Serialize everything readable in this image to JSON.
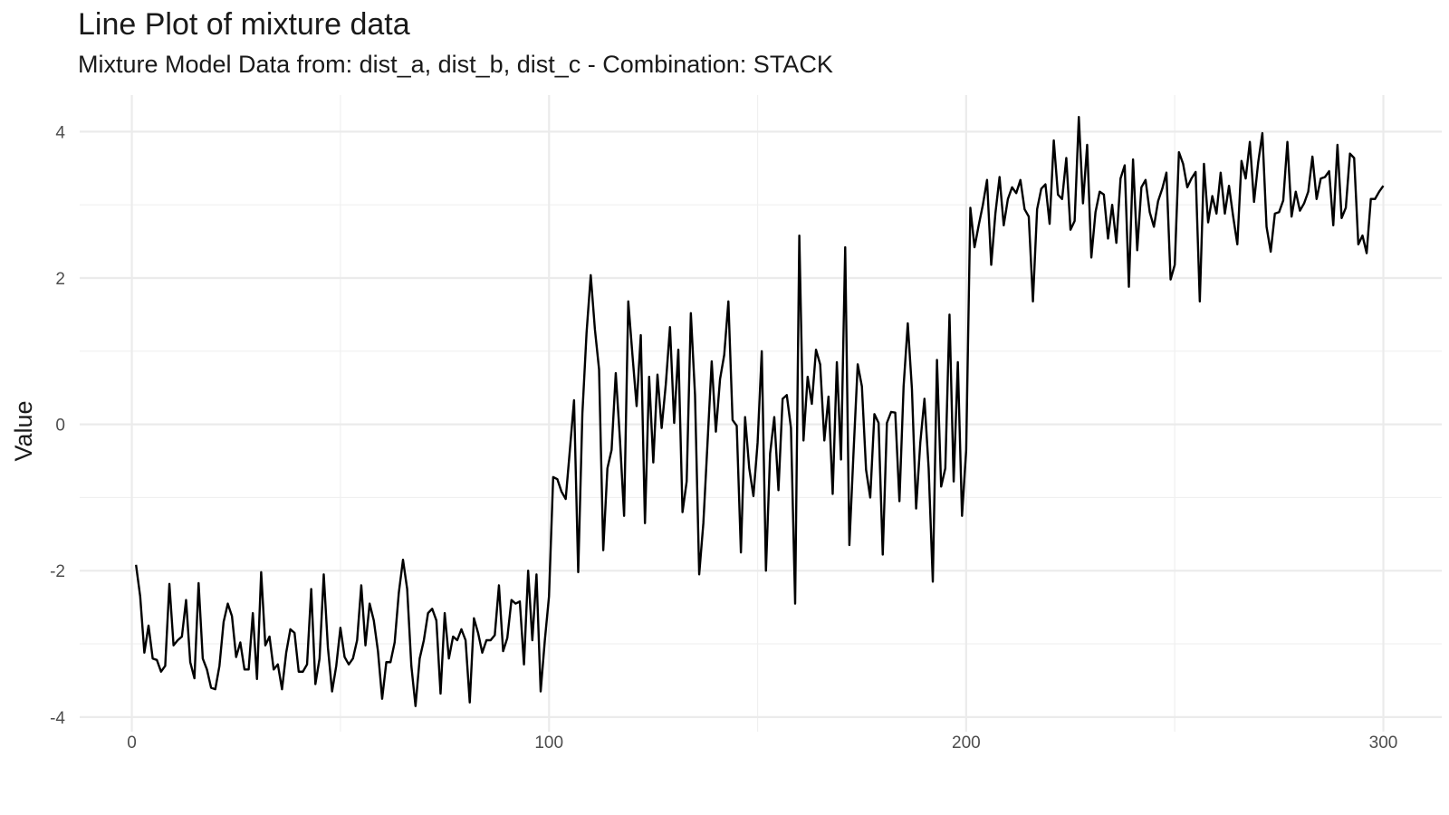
{
  "chart_data": {
    "type": "line",
    "title": "Line Plot of mixture data",
    "subtitle": "Mixture Model Data from: dist_a, dist_b, dist_c - Combination: STACK",
    "xlabel": "",
    "ylabel": "Value",
    "xlim": [
      -12.5,
      314
    ],
    "ylim": [
      -4.2,
      4.5
    ],
    "x_ticks": [
      0,
      100,
      200,
      300
    ],
    "y_ticks": [
      -4,
      -2,
      0,
      2,
      4
    ],
    "grid": true,
    "line_color": "#000000",
    "x_start": 1,
    "y": [
      -1.92,
      -2.35,
      -3.12,
      -2.75,
      -3.2,
      -3.22,
      -3.38,
      -3.3,
      -2.18,
      -3.02,
      -2.95,
      -2.9,
      -2.4,
      -3.25,
      -3.47,
      -2.17,
      -3.2,
      -3.35,
      -3.6,
      -3.62,
      -3.3,
      -2.7,
      -2.45,
      -2.62,
      -3.18,
      -2.98,
      -3.35,
      -3.35,
      -2.58,
      -3.48,
      -2.02,
      -3.02,
      -2.9,
      -3.35,
      -3.28,
      -3.62,
      -3.12,
      -2.8,
      -2.85,
      -3.38,
      -3.38,
      -3.28,
      -2.25,
      -3.55,
      -3.2,
      -2.05,
      -3.05,
      -3.65,
      -3.3,
      -2.78,
      -3.18,
      -3.28,
      -3.2,
      -2.95,
      -2.2,
      -3.02,
      -2.45,
      -2.68,
      -3.1,
      -3.75,
      -3.25,
      -3.25,
      -2.98,
      -2.3,
      -1.85,
      -2.25,
      -3.3,
      -3.85,
      -3.2,
      -2.95,
      -2.58,
      -2.52,
      -2.68,
      -3.68,
      -2.58,
      -3.2,
      -2.9,
      -2.95,
      -2.8,
      -2.95,
      -3.8,
      -2.65,
      -2.85,
      -3.12,
      -2.95,
      -2.95,
      -2.88,
      -2.2,
      -3.1,
      -2.92,
      -2.4,
      -2.45,
      -2.42,
      -3.28,
      -2.0,
      -2.95,
      -2.05,
      -3.65,
      -2.95,
      -2.35,
      -0.72,
      -0.75,
      -0.92,
      -1.02,
      -0.35,
      0.33,
      -2.02,
      0.15,
      1.25,
      2.04,
      1.3,
      0.75,
      -1.72,
      -0.6,
      -0.35,
      0.7,
      -0.2,
      -1.25,
      1.68,
      0.95,
      0.25,
      1.22,
      -1.35,
      0.65,
      -0.52,
      0.68,
      -0.05,
      0.55,
      1.33,
      0.02,
      1.02,
      -1.2,
      -0.78,
      1.52,
      0.4,
      -2.05,
      -1.35,
      -0.25,
      0.86,
      -0.1,
      0.62,
      0.95,
      1.68,
      0.06,
      -0.02,
      -1.75,
      0.1,
      -0.6,
      -0.98,
      -0.25,
      1.0,
      -2.0,
      -0.4,
      0.1,
      -0.9,
      0.35,
      0.4,
      -0.05,
      -2.45,
      2.58,
      -0.22,
      0.65,
      0.28,
      1.02,
      0.82,
      -0.22,
      0.38,
      -0.95,
      0.85,
      -0.48,
      2.42,
      -1.65,
      -0.38,
      0.82,
      0.52,
      -0.62,
      -1.0,
      0.14,
      0.02,
      -1.78,
      0.02,
      0.17,
      0.16,
      -1.05,
      0.52,
      1.38,
      0.48,
      -1.15,
      -0.25,
      0.35,
      -0.6,
      -2.15,
      0.88,
      -0.85,
      -0.6,
      1.5,
      -0.78,
      0.85,
      -1.25,
      -0.35,
      2.96,
      2.42,
      2.72,
      3.0,
      3.34,
      2.18,
      2.88,
      3.38,
      2.72,
      3.08,
      3.24,
      3.16,
      3.34,
      2.94,
      2.84,
      1.68,
      2.94,
      3.22,
      3.28,
      2.74,
      3.88,
      3.14,
      3.08,
      3.64,
      2.66,
      2.78,
      4.2,
      3.02,
      3.82,
      2.28,
      2.9,
      3.18,
      3.14,
      2.54,
      3.0,
      2.48,
      3.36,
      3.54,
      1.88,
      3.62,
      2.38,
      3.24,
      3.34,
      2.9,
      2.7,
      3.05,
      3.22,
      3.44,
      1.98,
      2.18,
      3.72,
      3.56,
      3.24,
      3.36,
      3.45,
      1.68,
      3.56,
      2.76,
      3.12,
      2.88,
      3.44,
      2.88,
      3.26,
      2.84,
      2.46,
      3.6,
      3.36,
      3.86,
      3.04,
      3.58,
      3.98,
      2.7,
      2.36,
      2.88,
      2.9,
      3.06,
      3.86,
      2.84,
      3.18,
      2.92,
      3.02,
      3.18,
      3.66,
      3.08,
      3.36,
      3.38,
      3.46,
      2.72,
      3.82,
      2.82,
      2.96,
      3.7,
      3.64,
      2.46,
      2.58,
      2.34,
      3.08,
      3.08,
      3.18,
      3.26
    ]
  }
}
